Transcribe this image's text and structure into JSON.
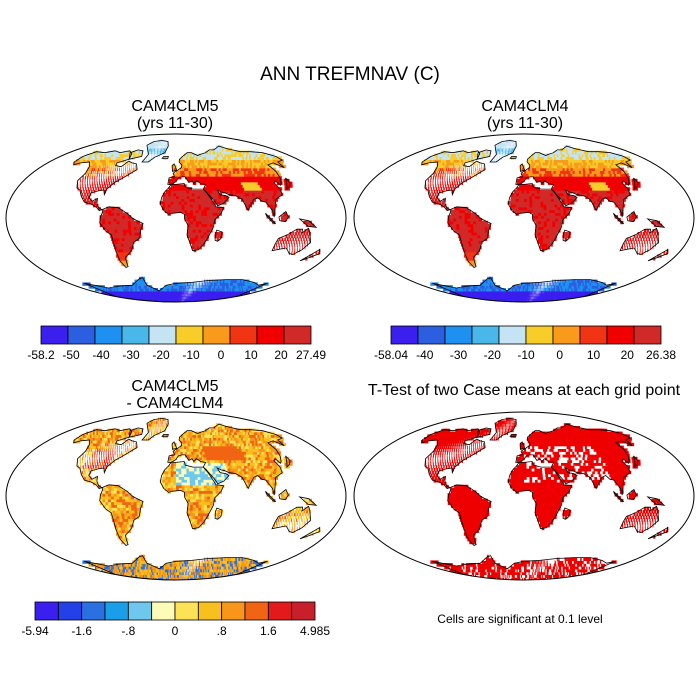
{
  "title": "ANN TREFMNAV (C)",
  "panels": [
    {
      "id": "p1",
      "title_lines": [
        "CAM4CLM5",
        "(yrs 11-30)"
      ],
      "style": "abs1",
      "colorbar": {
        "colors": [
          "#3a1fef",
          "#2b5fe0",
          "#1e90f0",
          "#4ab7ea",
          "#c4e4f4",
          "#f8cd2a",
          "#f99a1c",
          "#f03414",
          "#f00000",
          "#d12828"
        ],
        "labels": [
          "-58.2",
          "-50",
          "-40",
          "-30",
          "-20",
          "-10",
          "0",
          "10",
          "20",
          "27.49"
        ]
      }
    },
    {
      "id": "p2",
      "title_lines": [
        "CAM4CLM4",
        "(yrs 11-30)"
      ],
      "style": "abs2",
      "colorbar": {
        "colors": [
          "#3a1fef",
          "#2b5fe0",
          "#1e90f0",
          "#4ab7ea",
          "#c4e4f4",
          "#f8cd2a",
          "#f99a1c",
          "#f03414",
          "#f00000",
          "#d12828"
        ],
        "labels": [
          "-58.04",
          "-40",
          "-30",
          "-20",
          "-10",
          "0",
          "10",
          "20",
          "26.38"
        ]
      }
    },
    {
      "id": "p3",
      "title_lines": [
        "CAM4CLM5",
        "- CAM4CLM4"
      ],
      "style": "diff",
      "colorbar": {
        "colors": [
          "#3a1fef",
          "#2440e8",
          "#2a70e0",
          "#1a9ee8",
          "#6ec8ee",
          "#fdfbb6",
          "#fde258",
          "#f8c01e",
          "#f8961c",
          "#f06414",
          "#e31a1c",
          "#c7202a"
        ],
        "labels": [
          "-5.94",
          "-1.6",
          "-.8",
          "0",
          ".8",
          "1.6",
          "4.985"
        ]
      }
    },
    {
      "id": "p4",
      "title_lines": [
        "T-Test of two Case means at each grid point"
      ],
      "style": "ttest",
      "note": "Cells are significant at 0.1 level"
    }
  ],
  "colors": {
    "land_abs_warm": "#e03020",
    "land_tropic": "#d12c2c",
    "ocean": "#ffffff",
    "significant": "#ee0000",
    "outline": "#000000"
  }
}
